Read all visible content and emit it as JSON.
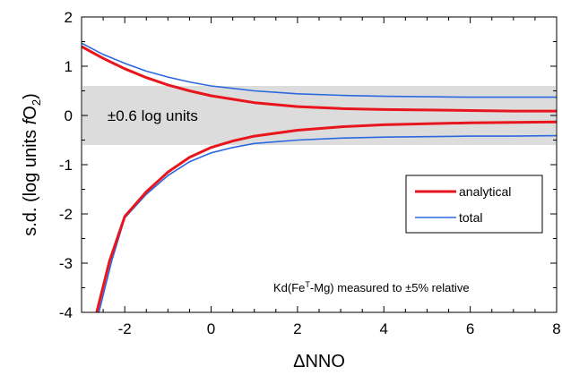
{
  "chart_data": {
    "type": "line",
    "xlabel": "ΔNNO",
    "ylabel_main": "s.d. (log units ",
    "ylabel_italic": "f",
    "ylabel_o": "O",
    "ylabel_sub": "2",
    "ylabel_close": ")",
    "xlim": [
      -3,
      8
    ],
    "ylim": [
      -4,
      2
    ],
    "xticks": [
      "-2",
      "0",
      "2",
      "4",
      "6",
      "8"
    ],
    "xtick_values": [
      -2,
      0,
      2,
      4,
      6,
      8
    ],
    "yticks": [
      "2",
      "1",
      "0",
      "-1",
      "-2",
      "-3",
      "-4"
    ],
    "ytick_values": [
      2,
      1,
      0,
      -1,
      -2,
      -3,
      -4
    ],
    "band": {
      "y_min": -0.6,
      "y_max": 0.6,
      "label": "±0.6 log units",
      "color": "#dcdcdc"
    },
    "annotation": {
      "prefix": "Kd(Fe",
      "sup": "T",
      "suffix": "-Mg) measured to ±5% relative"
    },
    "legend_position": "center-right",
    "series": [
      {
        "name": "analytical",
        "color": "#e8161c",
        "upper": [
          [
            -3,
            1.4
          ],
          [
            -2.5,
            1.16
          ],
          [
            -2,
            0.95
          ],
          [
            -1.5,
            0.77
          ],
          [
            -1,
            0.62
          ],
          [
            -0.5,
            0.5
          ],
          [
            0,
            0.4
          ],
          [
            1,
            0.26
          ],
          [
            2,
            0.18
          ],
          [
            3,
            0.14
          ],
          [
            4,
            0.12
          ],
          [
            5,
            0.11
          ],
          [
            6,
            0.1
          ],
          [
            7,
            0.09
          ],
          [
            8,
            0.09
          ]
        ],
        "lower": [
          [
            -2.65,
            -4
          ],
          [
            -2.35,
            -2.95
          ],
          [
            -2,
            -2.05
          ],
          [
            -1.5,
            -1.55
          ],
          [
            -1,
            -1.15
          ],
          [
            -0.5,
            -0.85
          ],
          [
            0,
            -0.65
          ],
          [
            0.5,
            -0.52
          ],
          [
            1,
            -0.42
          ],
          [
            2,
            -0.3
          ],
          [
            3,
            -0.23
          ],
          [
            4,
            -0.19
          ],
          [
            5,
            -0.17
          ],
          [
            6,
            -0.15
          ],
          [
            7,
            -0.14
          ],
          [
            8,
            -0.13
          ]
        ]
      },
      {
        "name": "total",
        "color": "#2b68e0",
        "upper": [
          [
            -3,
            1.47
          ],
          [
            -2.5,
            1.24
          ],
          [
            -2,
            1.06
          ],
          [
            -1.5,
            0.9
          ],
          [
            -1,
            0.78
          ],
          [
            -0.5,
            0.68
          ],
          [
            0,
            0.6
          ],
          [
            1,
            0.5
          ],
          [
            2,
            0.44
          ],
          [
            3,
            0.41
          ],
          [
            4,
            0.39
          ],
          [
            5,
            0.38
          ],
          [
            6,
            0.37
          ],
          [
            7,
            0.37
          ],
          [
            8,
            0.37
          ]
        ],
        "lower": [
          [
            -2.6,
            -4
          ],
          [
            -2.3,
            -2.95
          ],
          [
            -2,
            -2.08
          ],
          [
            -1.5,
            -1.6
          ],
          [
            -1,
            -1.22
          ],
          [
            -0.5,
            -0.94
          ],
          [
            0,
            -0.76
          ],
          [
            0.5,
            -0.65
          ],
          [
            1,
            -0.57
          ],
          [
            2,
            -0.5
          ],
          [
            3,
            -0.46
          ],
          [
            4,
            -0.44
          ],
          [
            5,
            -0.43
          ],
          [
            6,
            -0.42
          ],
          [
            7,
            -0.42
          ],
          [
            8,
            -0.41
          ]
        ]
      }
    ]
  }
}
